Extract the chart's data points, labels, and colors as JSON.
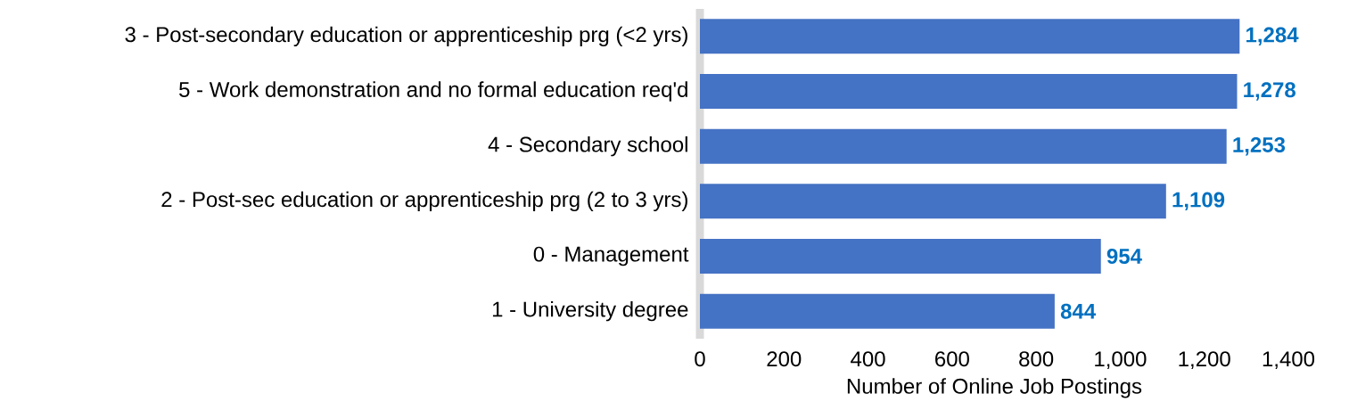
{
  "chart_data": {
    "type": "bar",
    "orientation": "horizontal",
    "categories": [
      "3 - Post-secondary education or apprenticeship prg (<2 yrs)",
      "5 - Work demonstration and no formal education req'd",
      "4 - Secondary school",
      "2 - Post-sec education or apprenticeship prg (2 to 3 yrs)",
      "0 - Management",
      "1 - University degree"
    ],
    "values": [
      1284,
      1278,
      1253,
      1109,
      954,
      844
    ],
    "value_labels": [
      "1,284",
      "1,278",
      "1,253",
      "1,109",
      "954",
      "844"
    ],
    "color": "#4472c4",
    "xlabel": "Number of Online Job Postings",
    "xlim": [
      0,
      1400
    ],
    "xticks": [
      0,
      200,
      400,
      600,
      800,
      {
        "value": 1000,
        "label": "1,000"
      },
      {
        "value": 1200,
        "label": "1,200"
      },
      {
        "value": 1400,
        "label": "1,400"
      }
    ]
  }
}
